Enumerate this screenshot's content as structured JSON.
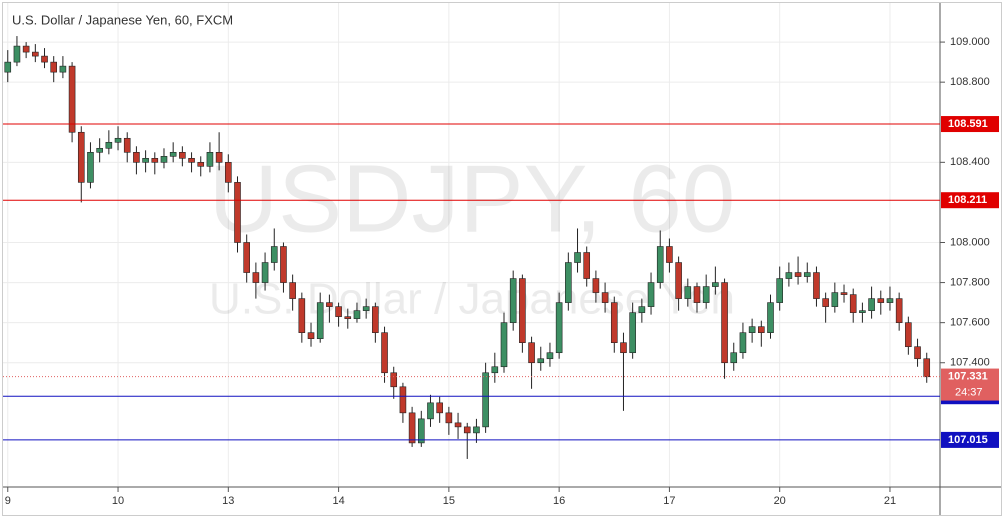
{
  "chart_data": {
    "type": "candlestick",
    "title": "U.S. Dollar / Japanese Yen, 60, FXCM",
    "watermark": "USDJPY, 60",
    "watermark_subtitle": "U.S. Dollar / Japanese Yen",
    "up_color": "#3d8f63",
    "down_color": "#c0392b",
    "grid": true,
    "xlim": [
      -0.6,
      201.8
    ],
    "xticks": [
      {
        "value": 0,
        "label": "9"
      },
      {
        "value": 24,
        "label": "10"
      },
      {
        "value": 48,
        "label": "13"
      },
      {
        "value": 72,
        "label": "14"
      },
      {
        "value": 96,
        "label": "15"
      },
      {
        "value": 120,
        "label": "16"
      },
      {
        "value": 144,
        "label": "17"
      },
      {
        "value": 168,
        "label": "20"
      },
      {
        "value": 192,
        "label": "21"
      }
    ],
    "ylim": [
      106.78,
      109.185
    ],
    "yticks": [
      {
        "value": 109.0,
        "label": "109.000"
      },
      {
        "value": 108.8,
        "label": "108.800"
      },
      {
        "value": 108.4,
        "label": "108.400"
      },
      {
        "value": 108.0,
        "label": "108.000"
      },
      {
        "value": 107.8,
        "label": "107.800"
      },
      {
        "value": 107.6,
        "label": "107.600"
      },
      {
        "value": 107.4,
        "label": "107.400"
      }
    ],
    "levels": [
      {
        "value": 108.591,
        "color": "#e00000"
      },
      {
        "value": 108.211,
        "color": "#e00000"
      },
      {
        "value": 107.233,
        "color": "#1010c0"
      },
      {
        "value": 107.015,
        "color": "#1010c0"
      }
    ],
    "current_price": {
      "value": 107.331,
      "countdown": "24:37",
      "color": "#e06060"
    },
    "x": [
      0,
      2,
      4,
      6,
      8,
      10,
      12,
      14,
      16,
      18,
      20,
      22,
      24,
      26,
      28,
      30,
      32,
      34,
      36,
      38,
      40,
      42,
      44,
      46,
      48,
      50,
      52,
      54,
      56,
      58,
      60,
      62,
      64,
      66,
      68,
      70,
      72,
      74,
      76,
      78,
      80,
      82,
      84,
      86,
      88,
      90,
      92,
      94,
      96,
      98,
      100,
      102,
      104,
      106,
      108,
      110,
      112,
      114,
      116,
      118,
      120,
      122,
      124,
      126,
      128,
      130,
      132,
      134,
      136,
      138,
      140,
      142,
      144,
      146,
      148,
      150,
      152,
      154,
      156,
      158,
      160,
      162,
      164,
      166,
      168,
      170,
      172,
      174,
      176,
      178,
      180,
      182,
      184,
      186,
      188,
      190,
      192,
      194,
      196,
      198,
      200
    ],
    "candles": [
      [
        108.85,
        108.96,
        108.8,
        108.9
      ],
      [
        108.9,
        109.03,
        108.88,
        108.98
      ],
      [
        108.98,
        109.0,
        108.92,
        108.95
      ],
      [
        108.95,
        108.99,
        108.9,
        108.93
      ],
      [
        108.93,
        108.97,
        108.87,
        108.9
      ],
      [
        108.9,
        108.93,
        108.8,
        108.85
      ],
      [
        108.85,
        108.93,
        108.82,
        108.88
      ],
      [
        108.88,
        108.9,
        108.5,
        108.55
      ],
      [
        108.55,
        108.58,
        108.2,
        108.3
      ],
      [
        108.3,
        108.5,
        108.27,
        108.45
      ],
      [
        108.45,
        108.52,
        108.4,
        108.47
      ],
      [
        108.47,
        108.56,
        108.44,
        108.5
      ],
      [
        108.5,
        108.58,
        108.46,
        108.52
      ],
      [
        108.52,
        108.55,
        108.4,
        108.45
      ],
      [
        108.45,
        108.48,
        108.34,
        108.4
      ],
      [
        108.4,
        108.46,
        108.35,
        108.42
      ],
      [
        108.42,
        108.45,
        108.34,
        108.4
      ],
      [
        108.4,
        108.47,
        108.37,
        108.43
      ],
      [
        108.43,
        108.5,
        108.4,
        108.45
      ],
      [
        108.45,
        108.48,
        108.38,
        108.42
      ],
      [
        108.42,
        108.45,
        108.35,
        108.4
      ],
      [
        108.4,
        108.43,
        108.33,
        108.38
      ],
      [
        108.38,
        108.5,
        108.35,
        108.45
      ],
      [
        108.45,
        108.55,
        108.36,
        108.4
      ],
      [
        108.4,
        108.44,
        108.25,
        108.3
      ],
      [
        108.3,
        108.33,
        107.95,
        108.0
      ],
      [
        108.0,
        108.04,
        107.8,
        107.85
      ],
      [
        107.85,
        107.9,
        107.72,
        107.8
      ],
      [
        107.8,
        107.95,
        107.76,
        107.9
      ],
      [
        107.9,
        108.07,
        107.86,
        107.98
      ],
      [
        107.98,
        108.0,
        107.75,
        107.8
      ],
      [
        107.8,
        107.84,
        107.66,
        107.72
      ],
      [
        107.72,
        107.75,
        107.5,
        107.55
      ],
      [
        107.55,
        107.6,
        107.48,
        107.52
      ],
      [
        107.52,
        107.75,
        107.5,
        107.7
      ],
      [
        107.7,
        107.74,
        107.6,
        107.68
      ],
      [
        107.68,
        107.7,
        107.58,
        107.63
      ],
      [
        107.63,
        107.67,
        107.57,
        107.62
      ],
      [
        107.62,
        107.7,
        107.6,
        107.66
      ],
      [
        107.66,
        107.72,
        107.62,
        107.68
      ],
      [
        107.68,
        107.7,
        107.5,
        107.55
      ],
      [
        107.55,
        107.58,
        107.3,
        107.35
      ],
      [
        107.35,
        107.38,
        107.22,
        107.28
      ],
      [
        107.28,
        107.3,
        107.1,
        107.15
      ],
      [
        107.15,
        107.18,
        106.98,
        107.0
      ],
      [
        107.0,
        107.16,
        106.98,
        107.12
      ],
      [
        107.12,
        107.24,
        107.08,
        107.2
      ],
      [
        107.2,
        107.23,
        107.1,
        107.15
      ],
      [
        107.15,
        107.18,
        107.04,
        107.1
      ],
      [
        107.1,
        107.15,
        107.02,
        107.08
      ],
      [
        107.08,
        107.1,
        106.92,
        107.05
      ],
      [
        107.05,
        107.12,
        107.0,
        107.08
      ],
      [
        107.08,
        107.4,
        107.05,
        107.35
      ],
      [
        107.35,
        107.45,
        107.3,
        107.38
      ],
      [
        107.38,
        107.65,
        107.35,
        107.6
      ],
      [
        107.6,
        107.86,
        107.56,
        107.82
      ],
      [
        107.82,
        107.84,
        107.45,
        107.5
      ],
      [
        107.5,
        107.53,
        107.27,
        107.4
      ],
      [
        107.4,
        107.48,
        107.36,
        107.42
      ],
      [
        107.42,
        107.5,
        107.38,
        107.45
      ],
      [
        107.45,
        107.75,
        107.42,
        107.7
      ],
      [
        107.7,
        107.95,
        107.66,
        107.9
      ],
      [
        107.9,
        108.07,
        107.85,
        107.95
      ],
      [
        107.95,
        107.98,
        107.78,
        107.82
      ],
      [
        107.82,
        107.86,
        107.7,
        107.75
      ],
      [
        107.75,
        107.8,
        107.65,
        107.7
      ],
      [
        107.7,
        107.73,
        107.45,
        107.5
      ],
      [
        107.5,
        107.55,
        107.16,
        107.45
      ],
      [
        107.45,
        107.7,
        107.42,
        107.65
      ],
      [
        107.65,
        107.72,
        107.6,
        107.68
      ],
      [
        107.68,
        107.85,
        107.64,
        107.8
      ],
      [
        107.8,
        108.06,
        107.77,
        107.98
      ],
      [
        107.98,
        108.02,
        107.85,
        107.9
      ],
      [
        107.9,
        107.93,
        107.66,
        107.72
      ],
      [
        107.72,
        107.82,
        107.68,
        107.78
      ],
      [
        107.78,
        107.8,
        107.65,
        107.7
      ],
      [
        107.7,
        107.84,
        107.67,
        107.78
      ],
      [
        107.78,
        107.88,
        107.74,
        107.8
      ],
      [
        107.8,
        107.82,
        107.32,
        107.4
      ],
      [
        107.4,
        107.5,
        107.36,
        107.45
      ],
      [
        107.45,
        107.6,
        107.42,
        107.55
      ],
      [
        107.55,
        107.62,
        107.5,
        107.58
      ],
      [
        107.58,
        107.61,
        107.48,
        107.55
      ],
      [
        107.55,
        107.74,
        107.52,
        107.7
      ],
      [
        107.7,
        107.88,
        107.66,
        107.82
      ],
      [
        107.82,
        107.9,
        107.78,
        107.85
      ],
      [
        107.85,
        107.93,
        107.79,
        107.83
      ],
      [
        107.83,
        107.9,
        107.8,
        107.85
      ],
      [
        107.85,
        107.88,
        107.68,
        107.72
      ],
      [
        107.72,
        107.75,
        107.6,
        107.68
      ],
      [
        107.68,
        107.8,
        107.65,
        107.75
      ],
      [
        107.75,
        107.79,
        107.7,
        107.74
      ],
      [
        107.74,
        107.77,
        107.6,
        107.65
      ],
      [
        107.65,
        107.7,
        107.6,
        107.66
      ],
      [
        107.66,
        107.78,
        107.62,
        107.72
      ],
      [
        107.72,
        107.76,
        107.64,
        107.7
      ],
      [
        107.7,
        107.78,
        107.66,
        107.72
      ],
      [
        107.72,
        107.75,
        107.56,
        107.6
      ],
      [
        107.6,
        107.63,
        107.44,
        107.48
      ],
      [
        107.48,
        107.52,
        107.38,
        107.42
      ],
      [
        107.42,
        107.45,
        107.3,
        107.33
      ]
    ]
  }
}
